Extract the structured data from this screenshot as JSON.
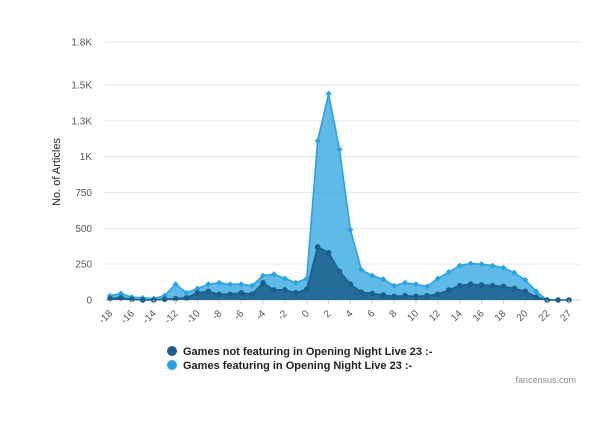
{
  "chart_data": {
    "type": "area",
    "title": "",
    "xlabel": "",
    "ylabel": "No. of Articles",
    "ylim": [
      0,
      1800
    ],
    "yticks": [
      0,
      250,
      500,
      750,
      1000,
      1250,
      1500,
      1800
    ],
    "ytick_labels": [
      "0",
      "250",
      "500",
      "750",
      "1K",
      "1.3K",
      "1.5K",
      "1.8K"
    ],
    "x_labels": [
      "-18",
      "-16",
      "-14",
      "-12",
      "-10",
      "-8",
      "-6",
      "-4",
      "-2",
      "0",
      "2",
      "4",
      "6",
      "8",
      "10",
      "12",
      "14",
      "16",
      "18",
      "20",
      "22",
      "27"
    ],
    "x": [
      -18,
      -17,
      -16,
      -15,
      -14,
      -13,
      -12,
      -11,
      -10,
      -9,
      -8,
      -7,
      -6,
      -5,
      -4,
      -3,
      -2,
      -1,
      0,
      1,
      2,
      3,
      4,
      5,
      6,
      7,
      8,
      9,
      10,
      11,
      12,
      13,
      14,
      15,
      16,
      17,
      18,
      19,
      20,
      21,
      22,
      23,
      27
    ],
    "grid": true,
    "legend_position": "bottom",
    "series": [
      {
        "name": "Games featuring in Opening Night Live 23 :-",
        "color": "#2aa3e0",
        "fill_opacity": 0.75,
        "values": [
          30,
          45,
          20,
          15,
          10,
          30,
          110,
          50,
          80,
          110,
          120,
          110,
          110,
          100,
          170,
          180,
          150,
          120,
          150,
          1110,
          1440,
          1050,
          490,
          210,
          170,
          145,
          100,
          120,
          110,
          95,
          150,
          195,
          240,
          255,
          250,
          240,
          225,
          190,
          140,
          60,
          0,
          0,
          null
        ]
      },
      {
        "name": "Games not featuring in Opening Night Live 23 :-",
        "color": "#1b5f8a",
        "fill_opacity": 0.85,
        "values": [
          10,
          15,
          5,
          0,
          0,
          5,
          10,
          15,
          50,
          60,
          40,
          40,
          50,
          40,
          120,
          70,
          70,
          50,
          75,
          370,
          330,
          200,
          110,
          55,
          45,
          35,
          25,
          30,
          25,
          30,
          40,
          70,
          100,
          110,
          105,
          100,
          95,
          80,
          60,
          20,
          0,
          0,
          0
        ]
      }
    ]
  },
  "legend": {
    "items": [
      {
        "label": "Games not featuring in Opening Night Live 23 :-",
        "color": "#1b5f8a"
      },
      {
        "label": "Games featuring in Opening Night Live 23 :-",
        "color": "#2aa3e0"
      }
    ]
  },
  "credit": "fancensus.com"
}
